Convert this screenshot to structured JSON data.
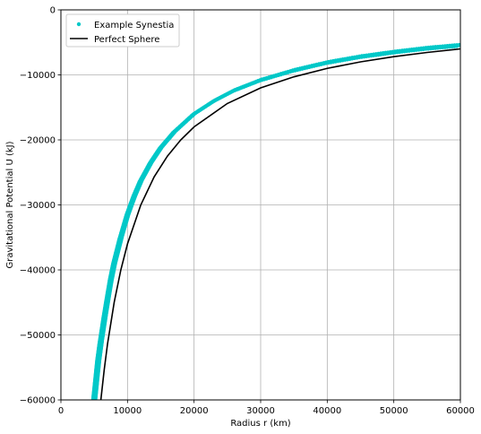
{
  "chart_data": {
    "type": "scatter",
    "title": "",
    "xlabel": "Radius r (km)",
    "ylabel": "Gravitational Potential U (kJ)",
    "xlim": [
      0,
      60000
    ],
    "ylim": [
      -60000,
      0
    ],
    "xticks": [
      "0",
      "10000",
      "20000",
      "30000",
      "40000",
      "50000",
      "60000"
    ],
    "yticks": [
      "0",
      "−10000",
      "−20000",
      "−30000",
      "−40000",
      "−50000",
      "−60000"
    ],
    "grid": true,
    "legend_position": "upper-left",
    "series": [
      {
        "name": "Example Synestia",
        "style": "markers",
        "color": "#00c8c8",
        "x": [
          5000,
          5200,
          5400,
          5600,
          5800,
          6000,
          6300,
          6600,
          7000,
          7500,
          8000,
          8500,
          9000,
          10000,
          11000,
          12000,
          13500,
          15000,
          17000,
          20000,
          23000,
          26000,
          30000,
          35000,
          40000,
          45000,
          50000,
          55000,
          60000
        ],
        "y": [
          -60000,
          -58000,
          -56000,
          -54000,
          -52500,
          -51000,
          -49000,
          -47000,
          -44500,
          -41500,
          -39000,
          -37000,
          -35000,
          -31500,
          -28700,
          -26300,
          -23500,
          -21200,
          -18800,
          -16000,
          -14000,
          -12400,
          -10800,
          -9300,
          -8100,
          -7200,
          -6500,
          -5900,
          -5450
        ]
      },
      {
        "name": "Perfect Sphere",
        "style": "line",
        "color": "#000000",
        "x": [
          6000,
          6500,
          7000,
          8000,
          9000,
          10000,
          12000,
          14000,
          16000,
          18000,
          20000,
          25000,
          30000,
          35000,
          40000,
          45000,
          50000,
          55000,
          60000
        ],
        "y": [
          -60000,
          -55400,
          -51400,
          -45000,
          -40000,
          -36000,
          -30000,
          -25700,
          -22500,
          -20000,
          -18000,
          -14400,
          -12000,
          -10300,
          -9000,
          -8000,
          -7200,
          -6550,
          -6000
        ]
      }
    ]
  }
}
